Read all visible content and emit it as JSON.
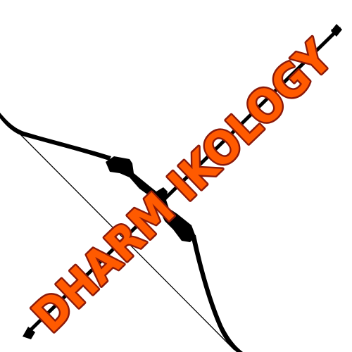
{
  "logo": {
    "text": "DHARM IKOLOGY",
    "fill_color": "#ff5a00",
    "outline_color": "#8b1a0a"
  },
  "artwork": {
    "icon": "recurve-bow-and-arrow",
    "ink_color": "#000000"
  }
}
